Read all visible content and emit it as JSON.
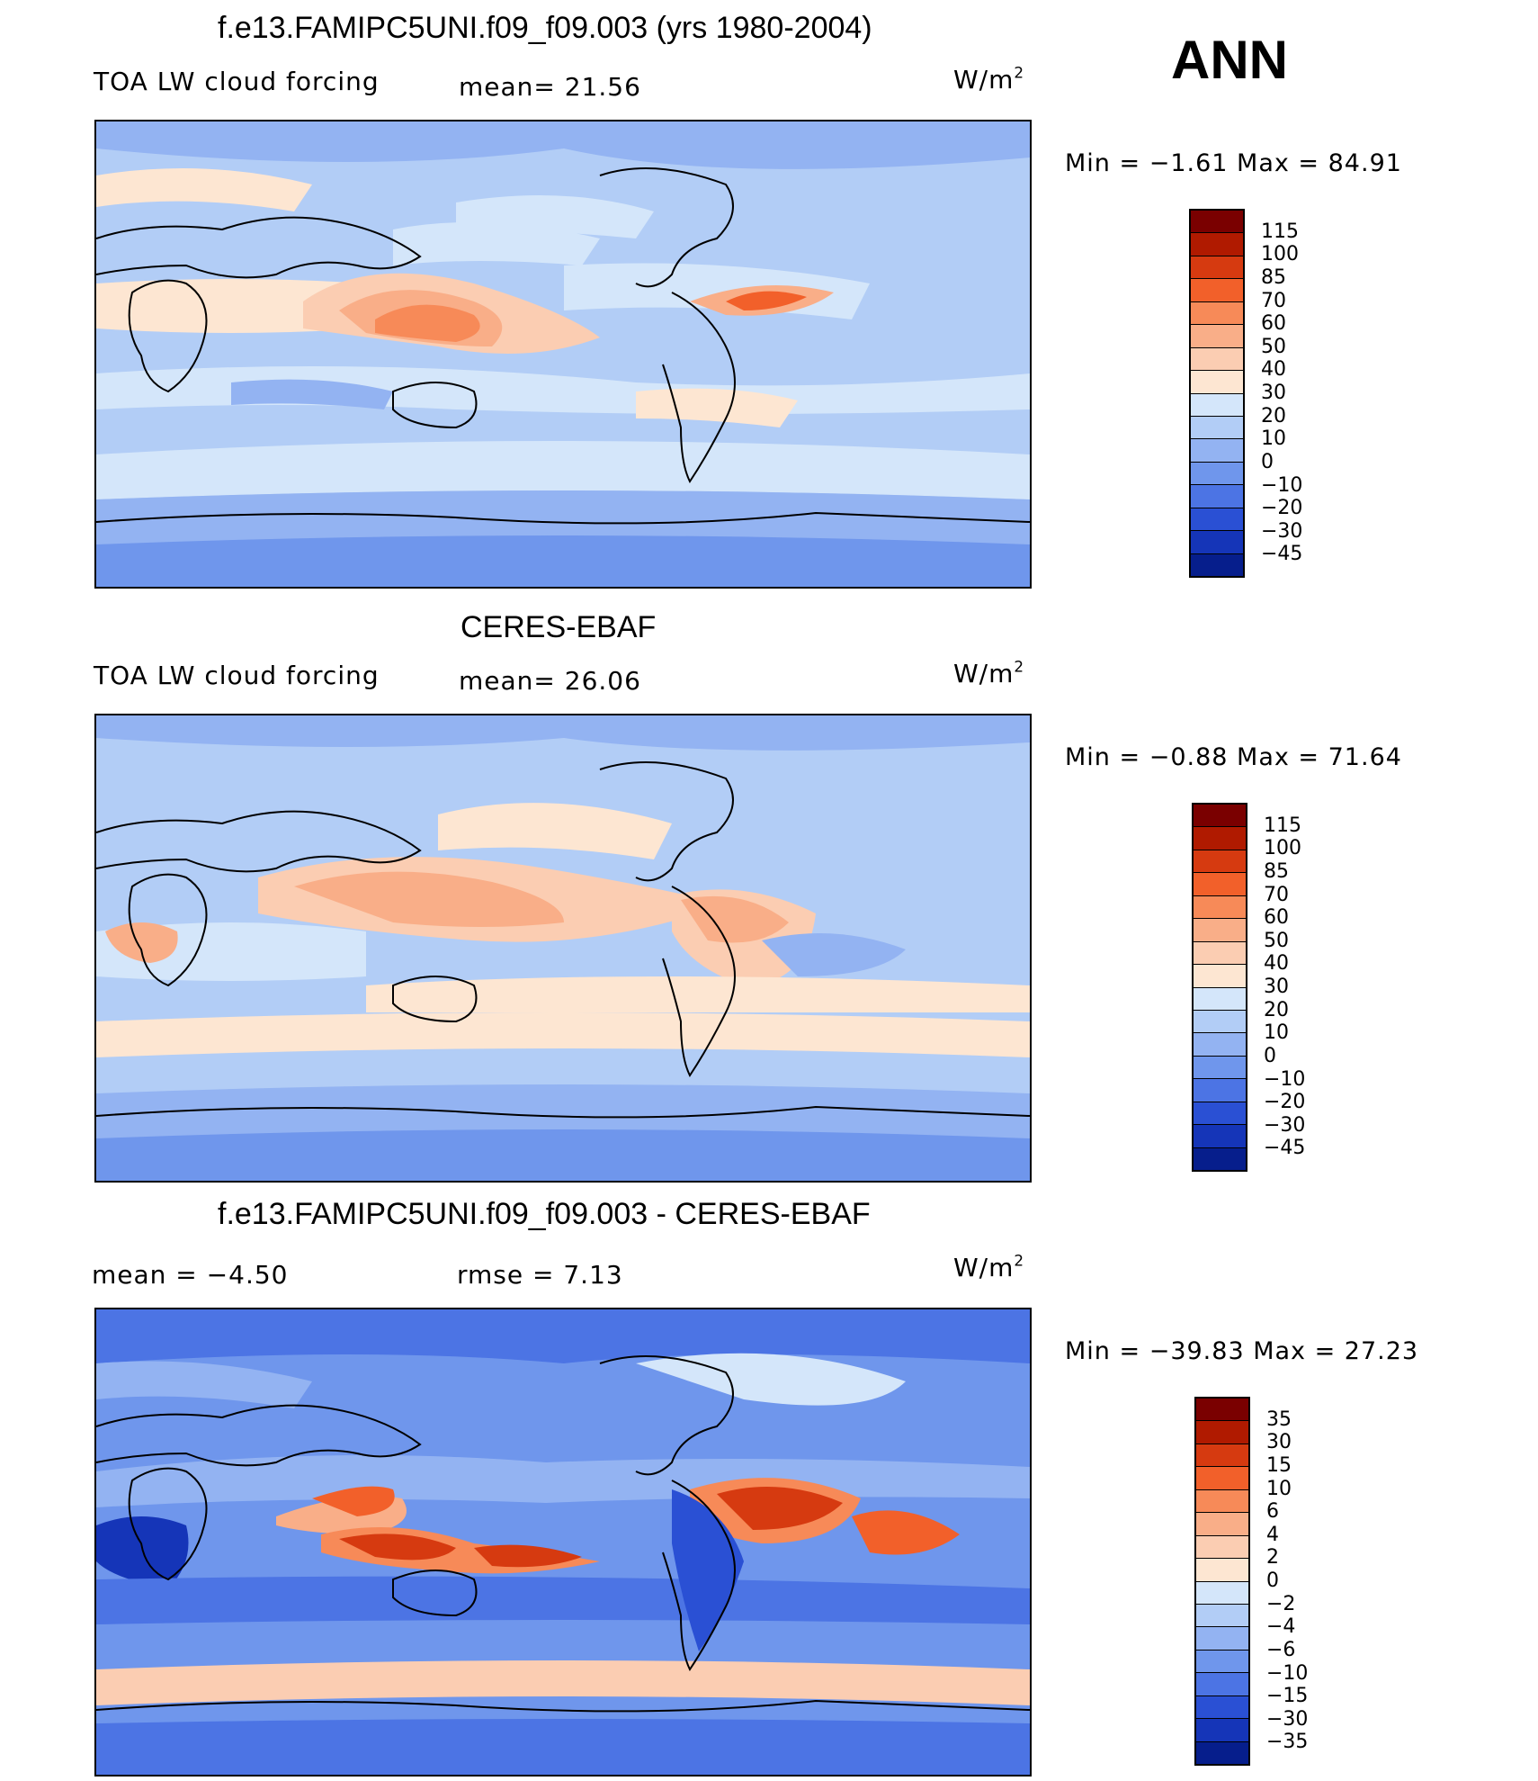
{
  "season": "ANN",
  "units_base": "W/m",
  "units_sup": "2",
  "panels": [
    {
      "title": "f.e13.FAMIPC5UNI.f09_f09.003 (yrs 1980-2004)",
      "left_label": "TOA LW cloud forcing",
      "middle_label": "mean=  21.56",
      "min_max": "Min =   −1.61 Max =   84.91",
      "colorbar_levels": [
        "115",
        "100",
        "85",
        "70",
        "60",
        "50",
        "40",
        "30",
        "20",
        "10",
        "0",
        "−10",
        "−20",
        "−30",
        "−45"
      ],
      "colorbar_colors": [
        "#7a0000",
        "#b01a00",
        "#d63a10",
        "#f2602a",
        "#f78a58",
        "#f9ae88",
        "#fbcdb2",
        "#fde6d2",
        "#d4e6fa",
        "#b2cdf6",
        "#93b3f2",
        "#6f96ec",
        "#4c74e4",
        "#2a50d4",
        "#1535b8",
        "#061e8c"
      ]
    },
    {
      "title": "CERES-EBAF",
      "left_label": "TOA LW cloud forcing",
      "middle_label": "mean=  26.06",
      "min_max": "Min =   −0.88 Max =   71.64",
      "colorbar_levels": [
        "115",
        "100",
        "85",
        "70",
        "60",
        "50",
        "40",
        "30",
        "20",
        "10",
        "0",
        "−10",
        "−20",
        "−30",
        "−45"
      ],
      "colorbar_colors": [
        "#7a0000",
        "#b01a00",
        "#d63a10",
        "#f2602a",
        "#f78a58",
        "#f9ae88",
        "#fbcdb2",
        "#fde6d2",
        "#d4e6fa",
        "#b2cdf6",
        "#93b3f2",
        "#6f96ec",
        "#4c74e4",
        "#2a50d4",
        "#1535b8",
        "#061e8c"
      ]
    },
    {
      "title": "f.e13.FAMIPC5UNI.f09_f09.003 - CERES-EBAF",
      "left_label": "mean =   −4.50",
      "middle_label": "rmse =    7.13",
      "min_max": "Min = −39.83 Max =   27.23",
      "colorbar_levels": [
        "35",
        "30",
        "15",
        "10",
        "6",
        "4",
        "2",
        "0",
        "−2",
        "−4",
        "−6",
        "−10",
        "−15",
        "−30",
        "−35"
      ],
      "colorbar_colors": [
        "#7a0000",
        "#b01a00",
        "#d63a10",
        "#f2602a",
        "#f78a58",
        "#f9ae88",
        "#fbcdb2",
        "#fde6d2",
        "#d4e6fa",
        "#b2cdf6",
        "#93b3f2",
        "#6f96ec",
        "#4c74e4",
        "#2a50d4",
        "#1535b8",
        "#061e8c"
      ]
    }
  ]
}
